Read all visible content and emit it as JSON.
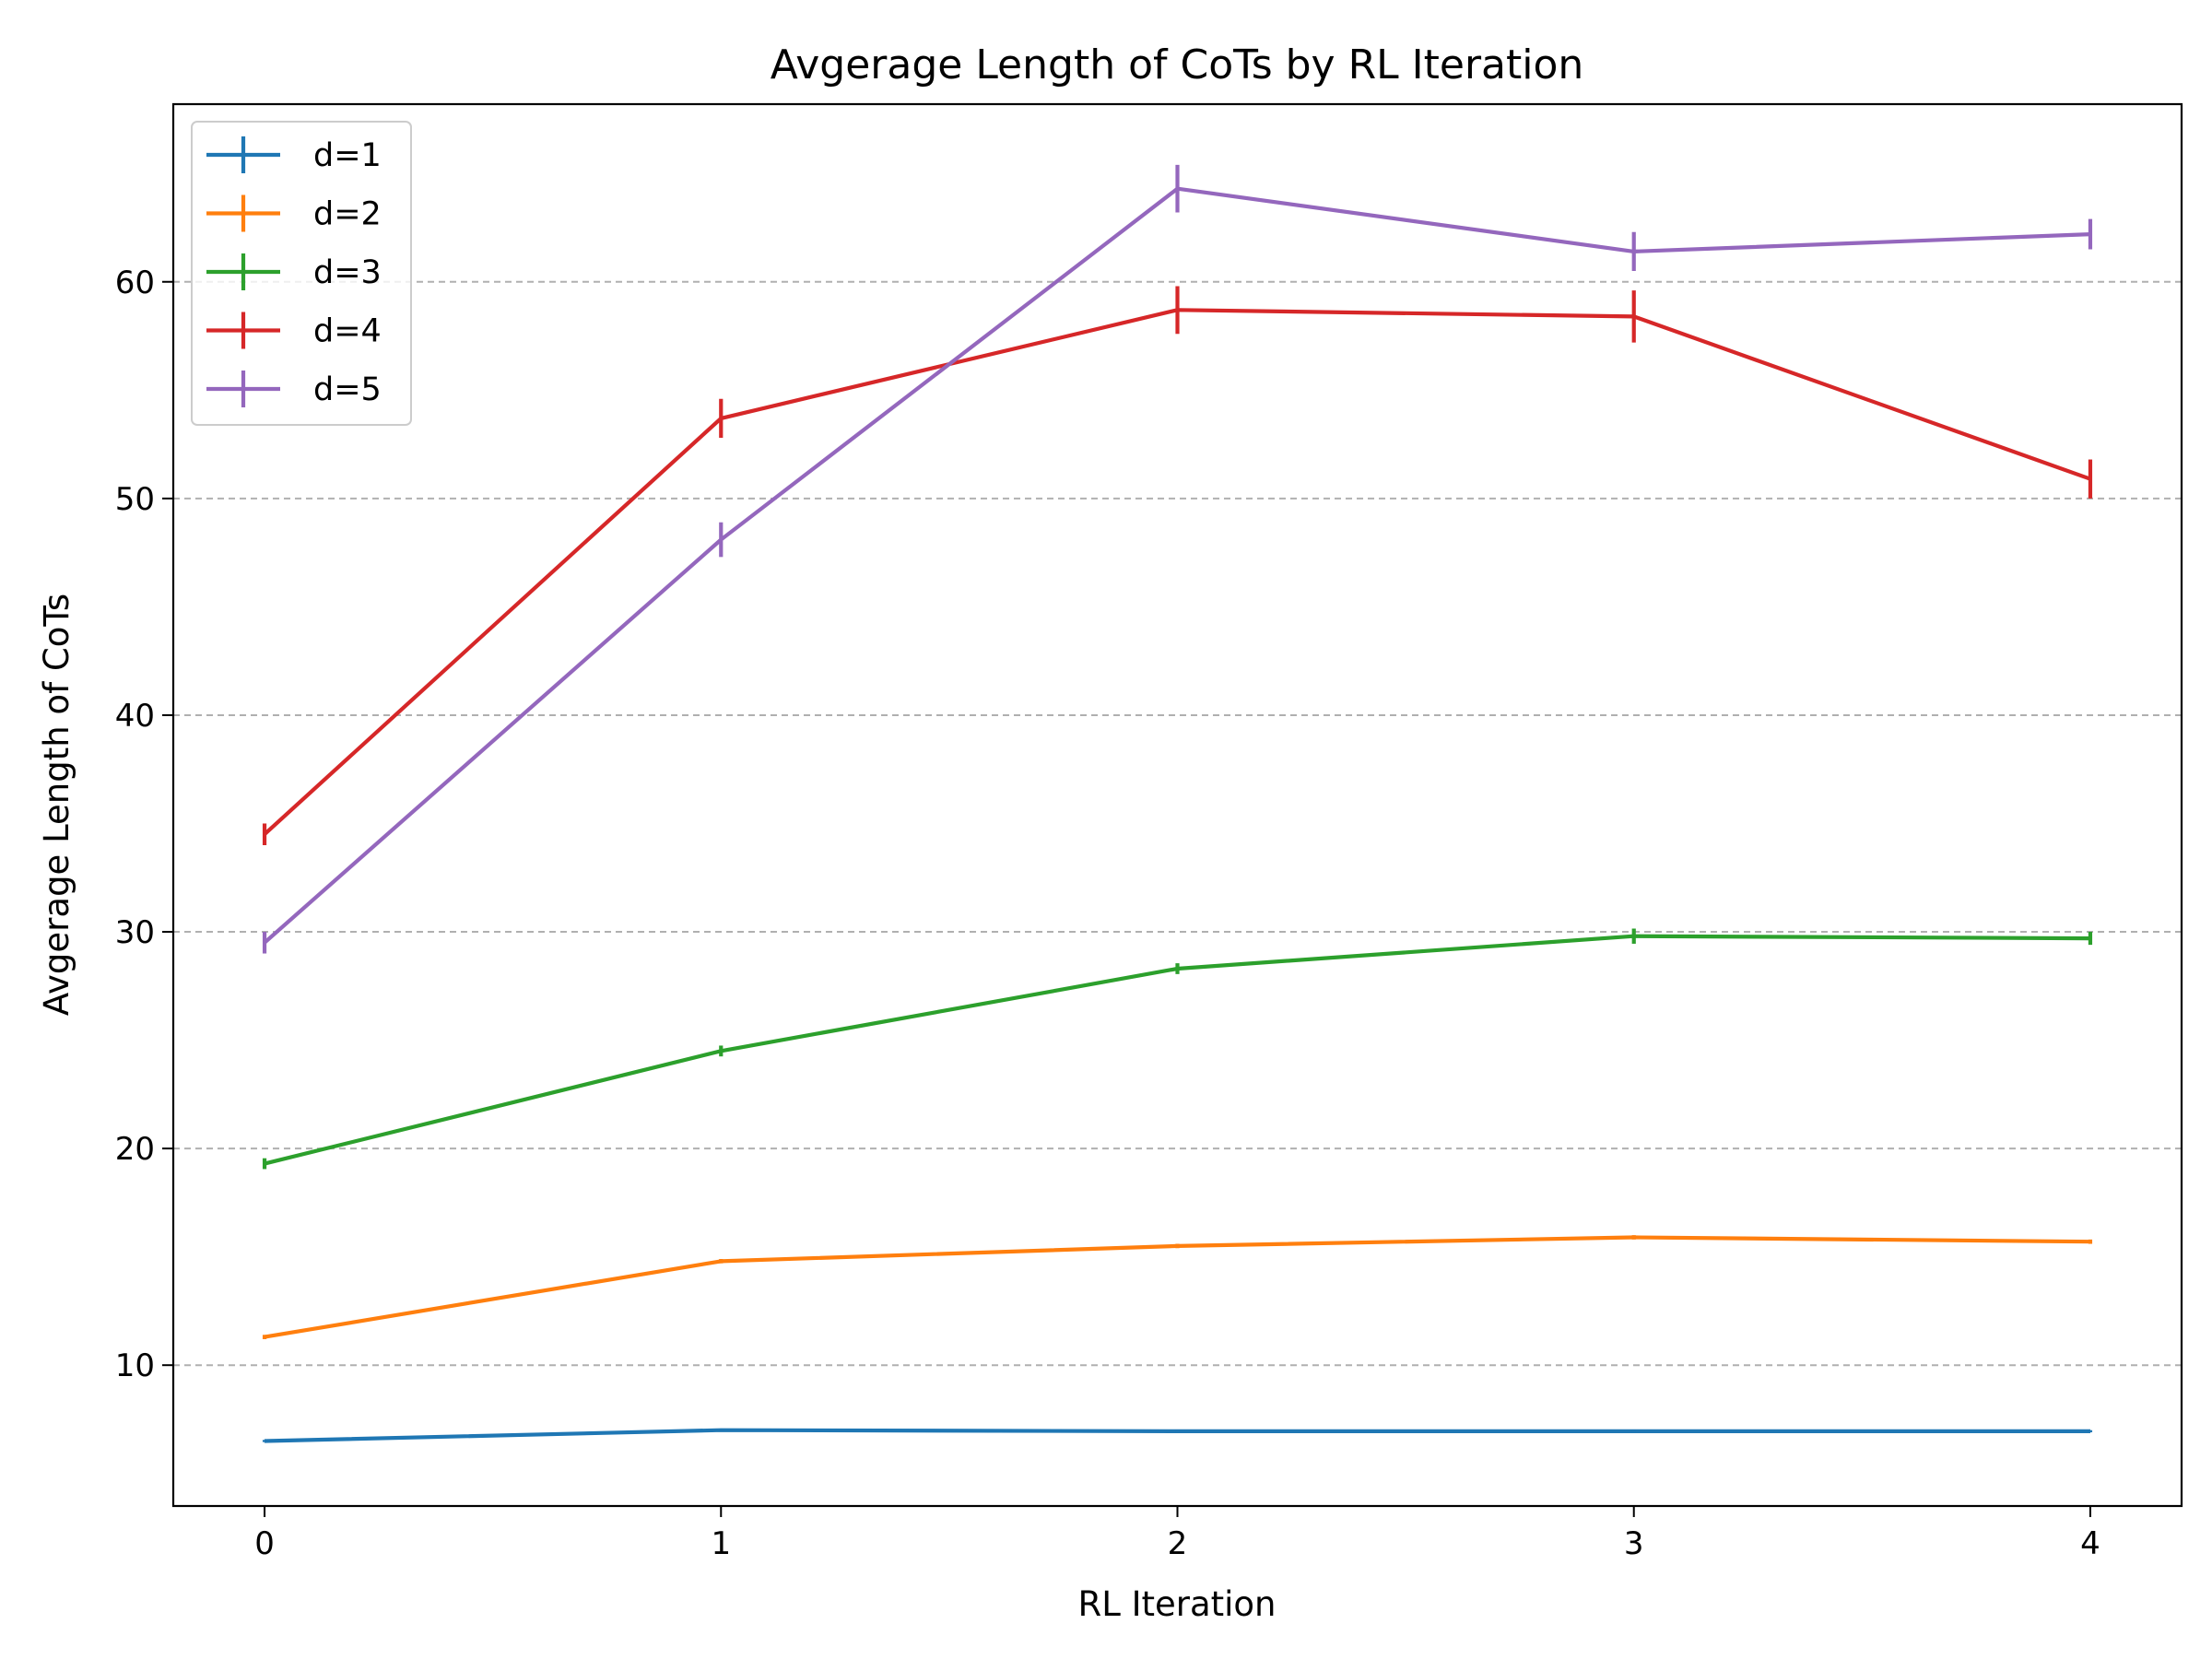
{
  "chart_data": {
    "type": "line",
    "title": "Avgerage Length of CoTs by RL Iteration",
    "xlabel": "RL Iteration",
    "ylabel": "Avgerage Length of CoTs",
    "x": [
      0,
      1,
      2,
      3,
      4
    ],
    "xticks": [
      "0",
      "1",
      "2",
      "3",
      "4"
    ],
    "yticks": [
      "10",
      "20",
      "30",
      "40",
      "50",
      "60"
    ],
    "xlim": [
      -0.2,
      4.2
    ],
    "ylim": [
      3.5,
      68.2
    ],
    "grid": "horizontal dashed",
    "legend_position": "top-left",
    "series": [
      {
        "name": "d=1",
        "color": "#1f77b4",
        "values": [
          6.5,
          7.0,
          6.95,
          6.95,
          6.95
        ],
        "errors": [
          0.05,
          0.05,
          0.05,
          0.05,
          0.05
        ]
      },
      {
        "name": "d=2",
        "color": "#ff7f0e",
        "values": [
          11.3,
          14.8,
          15.5,
          15.9,
          15.7
        ],
        "errors": [
          0.1,
          0.1,
          0.1,
          0.1,
          0.1
        ]
      },
      {
        "name": "d=3",
        "color": "#2ca02c",
        "values": [
          19.3,
          24.5,
          28.3,
          29.8,
          29.7
        ],
        "errors": [
          0.25,
          0.25,
          0.25,
          0.35,
          0.3
        ]
      },
      {
        "name": "d=4",
        "color": "#d62728",
        "values": [
          34.5,
          53.7,
          58.7,
          58.4,
          50.9
        ],
        "errors": [
          0.5,
          0.9,
          1.1,
          1.2,
          0.9
        ]
      },
      {
        "name": "d=5",
        "color": "#9467bd",
        "values": [
          29.5,
          48.1,
          64.3,
          61.4,
          62.2
        ],
        "errors": [
          0.5,
          0.8,
          1.1,
          0.9,
          0.7
        ]
      }
    ]
  }
}
